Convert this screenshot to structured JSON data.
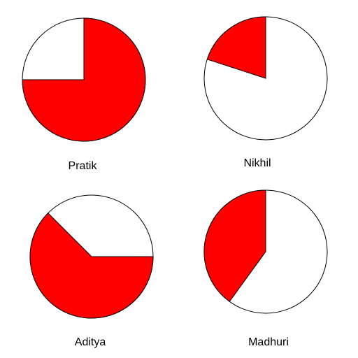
{
  "chart_data": [
    {
      "type": "pie",
      "label": "Pratik",
      "shaded_fraction": 0.75,
      "start_angle_deg": 90,
      "direction": "clockwise",
      "fill_color": "#ff0000",
      "background_color": "#ffffff"
    },
    {
      "type": "pie",
      "label": "Nikhil",
      "shaded_fraction": 0.2,
      "start_angle_deg": 90,
      "direction": "counterclockwise",
      "fill_color": "#ff0000",
      "background_color": "#ffffff"
    },
    {
      "type": "pie",
      "label": "Aditya",
      "shaded_fraction": 0.625,
      "start_angle_deg": 0,
      "direction": "clockwise",
      "fill_color": "#ff0000",
      "background_color": "#ffffff"
    },
    {
      "type": "pie",
      "label": "Madhuri",
      "shaded_fraction": 0.4,
      "start_angle_deg": 90,
      "direction": "counterclockwise",
      "fill_color": "#ff0000",
      "background_color": "#ffffff"
    }
  ]
}
